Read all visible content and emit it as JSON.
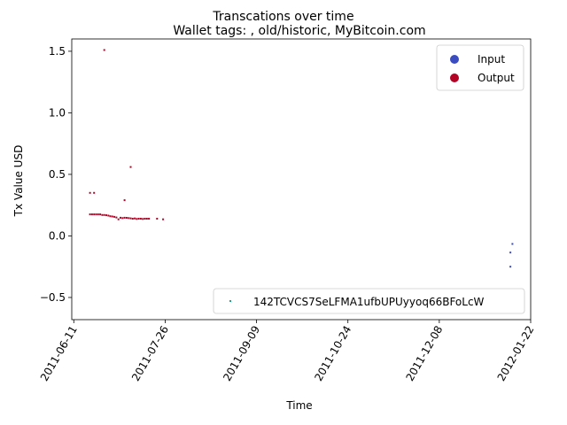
{
  "chart_data": {
    "type": "scatter",
    "suptitle": "Transcations over time",
    "title": "Wallet tags: , old/historic, MyBitcoin.com",
    "xlabel": "Time",
    "ylabel": "Tx Value USD",
    "xlim": [
      "2011-06-10",
      "2012-01-22"
    ],
    "ylim": [
      -0.68,
      1.6
    ],
    "x_ticks": [
      "2011-06-11",
      "2011-07-26",
      "2011-09-09",
      "2011-10-24",
      "2011-12-08",
      "2012-01-22"
    ],
    "y_ticks": [
      -0.5,
      0.0,
      0.5,
      1.0,
      1.5
    ],
    "y_tick_labels": [
      "−0.5",
      "0.0",
      "0.5",
      "1.0",
      "1.5"
    ],
    "grid": false,
    "legend_top": {
      "placement": "top-right",
      "entries": [
        {
          "label": "Input",
          "color": "#3b4cc0"
        },
        {
          "label": "Output",
          "color": "#b40426"
        }
      ]
    },
    "legend_bottom": {
      "placement": "lower-right",
      "entries": [
        {
          "label": "142TCVCS7SeLFMA1ufbUPUyyoq66BFoLcW",
          "color": "#17a889"
        }
      ]
    },
    "series": [
      {
        "name": "Output",
        "color": "#b40426",
        "points": [
          [
            "2011-06-19",
            0.35
          ],
          [
            "2011-06-21",
            0.35
          ],
          [
            "2011-06-26",
            1.51
          ],
          [
            "2011-07-06",
            0.29
          ],
          [
            "2011-07-09",
            0.56
          ],
          [
            "2011-06-19",
            0.175
          ],
          [
            "2011-06-20",
            0.175
          ],
          [
            "2011-06-21",
            0.175
          ],
          [
            "2011-06-22",
            0.175
          ],
          [
            "2011-06-23",
            0.175
          ],
          [
            "2011-06-24",
            0.175
          ],
          [
            "2011-06-25",
            0.17
          ],
          [
            "2011-06-26",
            0.17
          ],
          [
            "2011-06-27",
            0.168
          ],
          [
            "2011-06-28",
            0.165
          ],
          [
            "2011-06-29",
            0.16
          ],
          [
            "2011-06-30",
            0.158
          ],
          [
            "2011-07-01",
            0.155
          ],
          [
            "2011-07-02",
            0.15
          ],
          [
            "2011-07-03",
            0.135
          ],
          [
            "2011-07-04",
            0.148
          ],
          [
            "2011-07-05",
            0.145
          ],
          [
            "2011-07-06",
            0.148
          ],
          [
            "2011-07-07",
            0.147
          ],
          [
            "2011-07-08",
            0.145
          ],
          [
            "2011-07-09",
            0.143
          ],
          [
            "2011-07-10",
            0.14
          ],
          [
            "2011-07-11",
            0.142
          ],
          [
            "2011-07-12",
            0.138
          ],
          [
            "2011-07-13",
            0.14
          ],
          [
            "2011-07-14",
            0.14
          ],
          [
            "2011-07-15",
            0.138
          ],
          [
            "2011-07-16",
            0.14
          ],
          [
            "2011-07-17",
            0.14
          ],
          [
            "2011-07-18",
            0.14
          ],
          [
            "2011-07-22",
            0.14
          ],
          [
            "2011-07-25",
            0.135
          ]
        ]
      },
      {
        "name": "Input",
        "color": "#3b4cc0",
        "points": [
          [
            "2012-01-13",
            -0.065
          ],
          [
            "2012-01-12",
            -0.135
          ],
          [
            "2012-01-12",
            -0.25
          ]
        ]
      }
    ]
  }
}
